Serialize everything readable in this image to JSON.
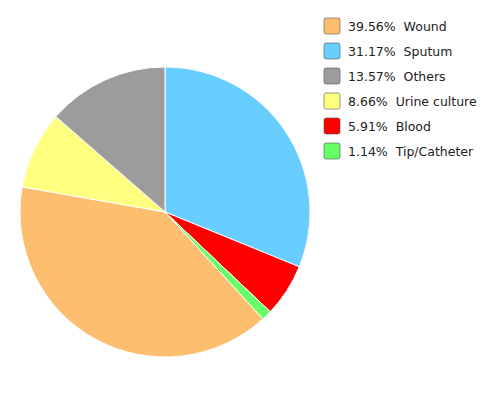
{
  "chart_data": {
    "type": "pie",
    "categories": [
      "31.17%  Sputum",
      "5.91%  Blood",
      "1.14%  Tip/Catheter",
      "39.56%  Wound",
      "8.66%  Urine culture",
      "13.57%  Others"
    ],
    "values": [
      31.17,
      5.91,
      1.14,
      39.56,
      8.66,
      13.57
    ],
    "colors": [
      "#67CEFF",
      "#FF0000",
      "#66FF66",
      "#FDBE6F",
      "#FFFF80",
      "#9C9C9C"
    ],
    "legend": "upper right"
  }
}
